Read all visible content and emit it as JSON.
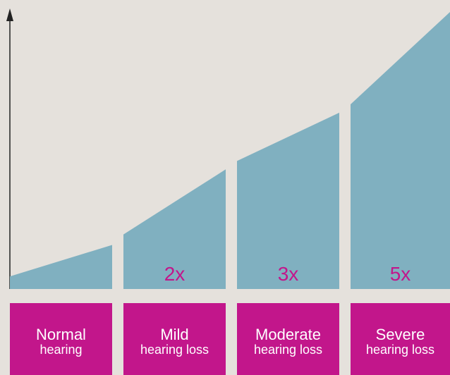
{
  "chart_data": {
    "type": "area",
    "title": "",
    "xlabel": "",
    "ylabel": "",
    "categories": [
      {
        "line1": "Normal",
        "line2": "hearing"
      },
      {
        "line1": "Mild",
        "line2": "hearing loss"
      },
      {
        "line1": "Moderate",
        "line2": "hearing loss"
      },
      {
        "line1": "Severe",
        "line2": "hearing loss"
      }
    ],
    "segments": [
      {
        "start": 0.06,
        "end": 0.21,
        "multiplier": ""
      },
      {
        "start": 0.26,
        "end": 0.57,
        "multiplier": "2x"
      },
      {
        "start": 0.61,
        "end": 0.84,
        "multiplier": "3x"
      },
      {
        "start": 0.88,
        "end": 1.32,
        "multiplier": "5x"
      }
    ],
    "ylim": [
      0,
      1.32
    ],
    "grid": false,
    "colors": {
      "background": "#e5e1dc",
      "area": "#80b0c0",
      "category_box": "#c2168b",
      "category_text": "#ffffff",
      "multiplier_text": "#c2168b",
      "axis": "#222222"
    }
  }
}
